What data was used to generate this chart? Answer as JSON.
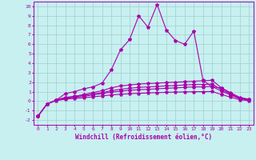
{
  "xlabel": "Windchill (Refroidissement éolien,°C)",
  "ylabel": "",
  "background_color": "#c8f0f0",
  "grid_color": "#a0d0d0",
  "line_color": "#aa00aa",
  "xlim": [
    -0.5,
    23.5
  ],
  "ylim": [
    -2.5,
    10.5
  ],
  "xticks": [
    0,
    1,
    2,
    3,
    4,
    5,
    6,
    7,
    8,
    9,
    10,
    11,
    12,
    13,
    14,
    15,
    16,
    17,
    18,
    19,
    20,
    21,
    22,
    23
  ],
  "yticks": [
    -2,
    -1,
    0,
    1,
    2,
    3,
    4,
    5,
    6,
    7,
    8,
    9,
    10
  ],
  "series": [
    [
      -1.6,
      -0.3,
      0.1,
      0.8,
      1.0,
      1.3,
      1.5,
      1.9,
      3.3,
      5.4,
      6.5,
      9.0,
      7.8,
      10.2,
      7.5,
      6.4,
      6.0,
      7.4,
      2.2,
      1.5,
      1.4,
      0.8,
      0.3,
      0.2
    ],
    [
      -1.6,
      -0.3,
      0.1,
      0.4,
      0.5,
      0.7,
      0.9,
      1.1,
      1.4,
      1.6,
      1.7,
      1.8,
      1.85,
      1.9,
      1.95,
      2.0,
      2.05,
      2.1,
      2.15,
      2.2,
      1.4,
      0.9,
      0.4,
      0.2
    ],
    [
      -1.6,
      -0.3,
      0.1,
      0.35,
      0.45,
      0.6,
      0.75,
      0.9,
      1.1,
      1.25,
      1.35,
      1.45,
      1.5,
      1.55,
      1.6,
      1.65,
      1.7,
      1.75,
      1.75,
      1.8,
      1.2,
      0.75,
      0.3,
      0.15
    ],
    [
      -1.6,
      -0.3,
      0.1,
      0.3,
      0.4,
      0.5,
      0.65,
      0.8,
      0.95,
      1.05,
      1.15,
      1.2,
      1.25,
      1.3,
      1.35,
      1.4,
      1.45,
      1.5,
      1.5,
      1.55,
      1.05,
      0.65,
      0.25,
      0.1
    ],
    [
      -1.6,
      -0.3,
      0.05,
      0.2,
      0.28,
      0.35,
      0.45,
      0.55,
      0.65,
      0.72,
      0.78,
      0.82,
      0.86,
      0.89,
      0.92,
      0.95,
      0.97,
      0.99,
      1.0,
      1.01,
      0.7,
      0.42,
      0.15,
      0.05
    ]
  ],
  "marker": "*",
  "markersize": 3,
  "linewidth": 0.8
}
